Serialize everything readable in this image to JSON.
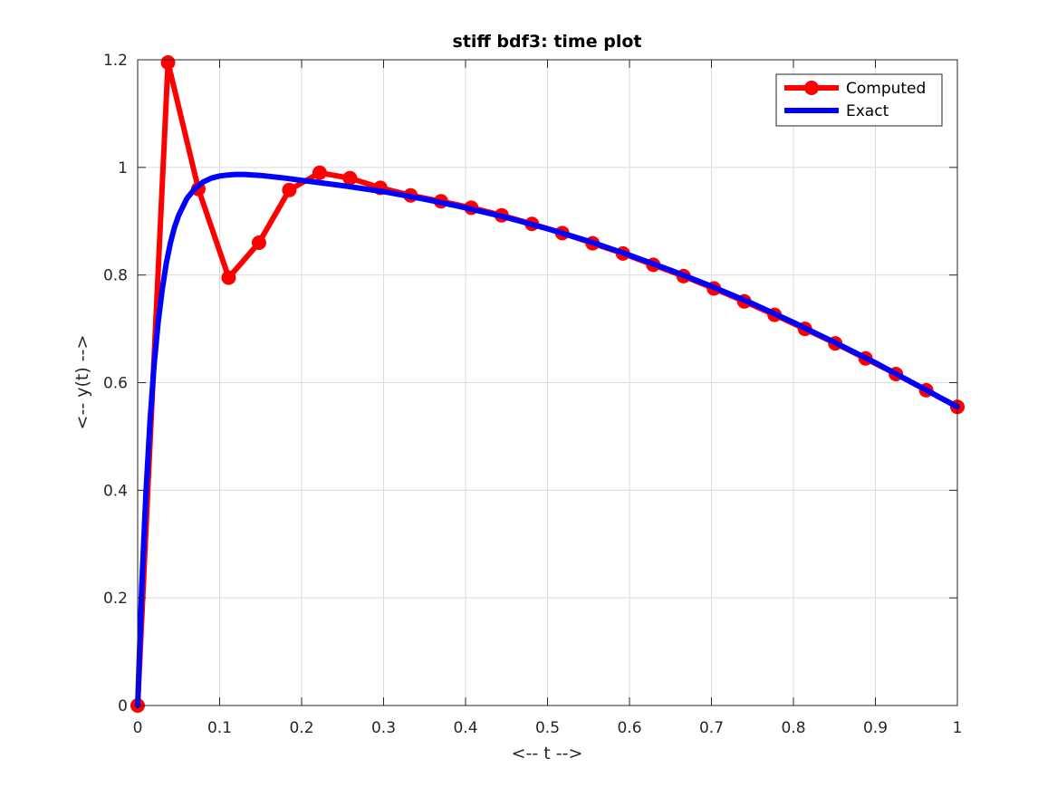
{
  "chart_data": {
    "type": "line",
    "title": "stiff bdf3: time plot",
    "xlabel": "<-- t -->",
    "ylabel": "<-- y(t) -->",
    "xlim": [
      0,
      1
    ],
    "ylim": [
      0,
      1.2
    ],
    "x_ticks": [
      0,
      0.1,
      0.2,
      0.3,
      0.4,
      0.5,
      0.6,
      0.7,
      0.8,
      0.9,
      1
    ],
    "x_tick_labels": [
      "0",
      "0.1",
      "0.2",
      "0.3",
      "0.4",
      "0.5",
      "0.6",
      "0.7",
      "0.8",
      "0.9",
      "1"
    ],
    "y_ticks": [
      0,
      0.2,
      0.4,
      0.6,
      0.8,
      1,
      1.2
    ],
    "y_tick_labels": [
      "0",
      "0.2",
      "0.4",
      "0.6",
      "0.8",
      "1",
      "1.2"
    ],
    "grid": true,
    "legend": "top-right",
    "series": [
      {
        "name": "Computed",
        "color": "#ff0000",
        "marker": "circle",
        "x": [
          0,
          0.037,
          0.074,
          0.111,
          0.148,
          0.185,
          0.222,
          0.259,
          0.296,
          0.333,
          0.37,
          0.407,
          0.444,
          0.481,
          0.518,
          0.555,
          0.592,
          0.629,
          0.666,
          0.703,
          0.74,
          0.777,
          0.814,
          0.851,
          0.888,
          0.925,
          0.962,
          1.0
        ],
        "y": [
          0,
          1.195,
          0.96,
          0.795,
          0.86,
          0.958,
          0.99,
          0.98,
          0.962,
          0.948,
          0.937,
          0.925,
          0.911,
          0.895,
          0.878,
          0.859,
          0.84,
          0.819,
          0.798,
          0.775,
          0.751,
          0.726,
          0.7,
          0.673,
          0.645,
          0.616,
          0.586,
          0.555
        ]
      },
      {
        "name": "Exact",
        "color": "#0000ff",
        "marker": "none",
        "x": [
          0,
          0.005,
          0.01,
          0.015,
          0.02,
          0.025,
          0.03,
          0.035,
          0.04,
          0.045,
          0.05,
          0.06,
          0.07,
          0.08,
          0.09,
          0.1,
          0.11,
          0.12,
          0.13,
          0.15,
          0.18,
          0.2,
          0.25,
          0.3,
          0.35,
          0.4,
          0.45,
          0.5,
          0.55,
          0.6,
          0.65,
          0.7,
          0.75,
          0.8,
          0.85,
          0.9,
          0.95,
          1.0
        ],
        "y": [
          0,
          0.222,
          0.394,
          0.528,
          0.632,
          0.712,
          0.774,
          0.823,
          0.86,
          0.889,
          0.911,
          0.942,
          0.961,
          0.973,
          0.98,
          0.984,
          0.986,
          0.987,
          0.987,
          0.985,
          0.98,
          0.976,
          0.966,
          0.955,
          0.941,
          0.925,
          0.907,
          0.886,
          0.863,
          0.837,
          0.809,
          0.779,
          0.747,
          0.712,
          0.675,
          0.637,
          0.596,
          0.555
        ]
      }
    ]
  }
}
